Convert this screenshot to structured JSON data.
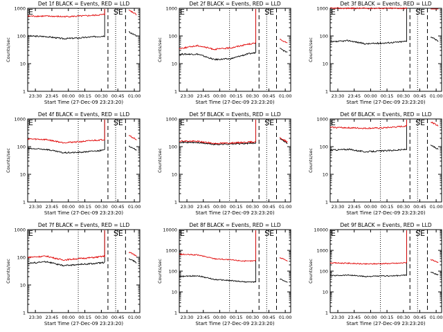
{
  "colors": {
    "events": "#000000",
    "lld": "#e00000",
    "background": "#ffffff",
    "axis": "#000000"
  },
  "chart_data": [
    {
      "type": "line",
      "title": "Det 1f BLACK = Events, RED = LLD",
      "xlabel": "Start Time (27-Dec-09 23:23:20)",
      "ylabel": "Counts/sec",
      "y_scale": "log",
      "ylim": [
        1,
        1000
      ],
      "xlim": [
        "23:23",
        "01:05"
      ],
      "x_tick_labels": [
        "23:30",
        "23:45",
        "00:00",
        "00:15",
        "00:30",
        "00:45",
        "01:00"
      ],
      "y_tick_labels": [
        "1",
        "10",
        "100",
        "1000"
      ],
      "marker_labels": [
        "E",
        "SE"
      ],
      "series": [
        {
          "name": "BLACK = Events",
          "data": [
            [
              "23:23",
              100
            ],
            [
              "23:40",
              95
            ],
            [
              "23:55",
              80
            ],
            [
              "00:10",
              85
            ],
            [
              "00:25",
              95
            ],
            [
              "00:33",
              100
            ]
          ]
        },
        {
          "name": "RED = LLD",
          "data": [
            [
              "23:23",
              520
            ],
            [
              "23:40",
              520
            ],
            [
              "23:55",
              500
            ],
            [
              "00:10",
              520
            ],
            [
              "00:25",
              560
            ],
            [
              "00:33",
              600
            ]
          ]
        }
      ]
    },
    {
      "type": "line",
      "title": "Det 2f BLACK = Events, RED = LLD",
      "xlabel": "Start Time (27-Dec-09 23:23:20)",
      "ylabel": "Counts/sec",
      "y_scale": "log",
      "ylim": [
        1,
        1000
      ],
      "xlim": [
        "23:23",
        "01:05"
      ],
      "x_tick_labels": [
        "23:30",
        "23:45",
        "00:00",
        "00:15",
        "00:30",
        "00:45",
        "01:00"
      ],
      "y_tick_labels": [
        "1",
        "10",
        "100",
        "1000"
      ],
      "marker_labels": [
        "E",
        "SE"
      ],
      "series": [
        {
          "name": "BLACK = Events",
          "data": [
            [
              "23:23",
              22
            ],
            [
              "23:40",
              22
            ],
            [
              "23:55",
              14
            ],
            [
              "00:10",
              15
            ],
            [
              "00:25",
              22
            ],
            [
              "00:33",
              25
            ]
          ]
        },
        {
          "name": "RED = LLD",
          "data": [
            [
              "23:23",
              35
            ],
            [
              "23:40",
              45
            ],
            [
              "23:55",
              33
            ],
            [
              "00:10",
              37
            ],
            [
              "00:25",
              50
            ],
            [
              "00:33",
              55
            ]
          ]
        }
      ]
    },
    {
      "type": "line",
      "title": "Det 3f BLACK = Events, RED = LLD",
      "xlabel": "Start Time (27-Dec-09 23:23:20)",
      "ylabel": "Counts/sec",
      "y_scale": "log",
      "ylim": [
        1,
        1000
      ],
      "xlim": [
        "23:23",
        "01:05"
      ],
      "x_tick_labels": [
        "23:30",
        "23:45",
        "00:00",
        "00:15",
        "00:30",
        "00:45",
        "01:00"
      ],
      "y_tick_labels": [
        "1",
        "10",
        "100",
        "1000"
      ],
      "marker_labels": [
        "E",
        "SE"
      ],
      "series": [
        {
          "name": "BLACK = Events",
          "data": [
            [
              "23:23",
              60
            ],
            [
              "23:40",
              68
            ],
            [
              "23:55",
              52
            ],
            [
              "00:10",
              55
            ],
            [
              "00:25",
              60
            ],
            [
              "00:33",
              65
            ]
          ]
        },
        {
          "name": "RED = LLD",
          "data": [
            [
              "23:23",
              1000
            ],
            [
              "23:40",
              1000
            ],
            [
              "23:55",
              1000
            ],
            [
              "00:10",
              1000
            ],
            [
              "00:25",
              1000
            ],
            [
              "00:33",
              1000
            ]
          ]
        }
      ]
    },
    {
      "type": "line",
      "title": "Det 4f BLACK = Events, RED = LLD",
      "xlabel": "Start Time (27-Dec-09 23:23:20)",
      "ylabel": "Counts/sec",
      "y_scale": "log",
      "ylim": [
        1,
        1000
      ],
      "xlim": [
        "23:23",
        "01:05"
      ],
      "x_tick_labels": [
        "23:30",
        "23:45",
        "00:00",
        "00:15",
        "00:30",
        "00:45",
        "01:00"
      ],
      "y_tick_labels": [
        "1",
        "10",
        "100",
        "1000"
      ],
      "marker_labels": [
        "E",
        "SE"
      ],
      "series": [
        {
          "name": "BLACK = Events",
          "data": [
            [
              "23:23",
              85
            ],
            [
              "23:40",
              80
            ],
            [
              "23:55",
              60
            ],
            [
              "00:10",
              62
            ],
            [
              "00:25",
              70
            ],
            [
              "00:33",
              75
            ]
          ]
        },
        {
          "name": "RED = LLD",
          "data": [
            [
              "23:23",
              190
            ],
            [
              "23:40",
              180
            ],
            [
              "23:55",
              140
            ],
            [
              "00:10",
              150
            ],
            [
              "00:25",
              170
            ],
            [
              "00:33",
              180
            ]
          ]
        }
      ]
    },
    {
      "type": "line",
      "title": "Det 5f BLACK = Events, RED = LLD",
      "xlabel": "Start Time (27-Dec-09 23:23:20)",
      "ylabel": "Counts/sec",
      "y_scale": "log",
      "ylim": [
        1,
        1000
      ],
      "xlim": [
        "23:23",
        "01:05"
      ],
      "x_tick_labels": [
        "23:30",
        "23:45",
        "00:00",
        "00:15",
        "00:30",
        "00:45",
        "01:00"
      ],
      "y_tick_labels": [
        "1",
        "10",
        "100",
        "1000"
      ],
      "marker_labels": [
        "E",
        "SE"
      ],
      "series": [
        {
          "name": "BLACK = Events",
          "data": [
            [
              "23:23",
              145
            ],
            [
              "23:40",
              140
            ],
            [
              "23:55",
              120
            ],
            [
              "00:10",
              125
            ],
            [
              "00:25",
              130
            ],
            [
              "00:33",
              135
            ]
          ]
        },
        {
          "name": "RED = LLD",
          "data": [
            [
              "23:23",
              160
            ],
            [
              "23:40",
              155
            ],
            [
              "23:55",
              130
            ],
            [
              "00:10",
              135
            ],
            [
              "00:25",
              145
            ],
            [
              "00:33",
              150
            ]
          ]
        }
      ]
    },
    {
      "type": "line",
      "title": "Det 6f BLACK = Events, RED = LLD",
      "xlabel": "Start Time (27-Dec-09 23:23:20)",
      "ylabel": "Counts/sec",
      "y_scale": "log",
      "ylim": [
        1,
        1000
      ],
      "xlim": [
        "23:23",
        "01:05"
      ],
      "x_tick_labels": [
        "23:30",
        "23:45",
        "00:00",
        "00:15",
        "00:30",
        "00:45",
        "01:00"
      ],
      "y_tick_labels": [
        "1",
        "10",
        "100",
        "1000"
      ],
      "marker_labels": [
        "E",
        "SE"
      ],
      "series": [
        {
          "name": "BLACK = Events",
          "data": [
            [
              "23:23",
              75
            ],
            [
              "23:40",
              80
            ],
            [
              "23:55",
              65
            ],
            [
              "00:10",
              70
            ],
            [
              "00:25",
              75
            ],
            [
              "00:33",
              80
            ]
          ]
        },
        {
          "name": "RED = LLD",
          "data": [
            [
              "23:23",
              500
            ],
            [
              "23:40",
              480
            ],
            [
              "23:55",
              460
            ],
            [
              "00:10",
              470
            ],
            [
              "00:25",
              520
            ],
            [
              "00:33",
              560
            ]
          ]
        }
      ]
    },
    {
      "type": "line",
      "title": "Det 7f BLACK = Events, RED = LLD",
      "xlabel": "Start Time (27-Dec-09 23:23:20)",
      "ylabel": "Counts/sec",
      "y_scale": "log",
      "ylim": [
        1,
        1000
      ],
      "xlim": [
        "23:23",
        "01:05"
      ],
      "x_tick_labels": [
        "23:30",
        "23:45",
        "00:00",
        "00:15",
        "00:30",
        "00:45",
        "01:00"
      ],
      "y_tick_labels": [
        "1",
        "10",
        "100",
        "1000"
      ],
      "marker_labels": [
        "E",
        "SE"
      ],
      "series": [
        {
          "name": "BLACK = Events",
          "data": [
            [
              "23:23",
              60
            ],
            [
              "23:40",
              70
            ],
            [
              "23:55",
              50
            ],
            [
              "00:10",
              55
            ],
            [
              "00:25",
              60
            ],
            [
              "00:33",
              65
            ]
          ]
        },
        {
          "name": "RED = LLD",
          "data": [
            [
              "23:23",
              100
            ],
            [
              "23:40",
              110
            ],
            [
              "23:55",
              80
            ],
            [
              "00:10",
              90
            ],
            [
              "00:25",
              100
            ],
            [
              "00:33",
              110
            ]
          ]
        }
      ]
    },
    {
      "type": "line",
      "title": "Det 8f BLACK = Events, RED = LLD",
      "xlabel": "Start Time (27-Dec-09 23:23:20)",
      "ylabel": "Counts/sec",
      "y_scale": "log",
      "ylim": [
        1,
        10000
      ],
      "xlim": [
        "23:23",
        "01:05"
      ],
      "x_tick_labels": [
        "23:30",
        "23:45",
        "00:00",
        "00:15",
        "00:30",
        "00:45",
        "01:00"
      ],
      "y_tick_labels": [
        "1",
        "10",
        "100",
        "1000",
        "10000"
      ],
      "marker_labels": [
        "E",
        "SE"
      ],
      "series": [
        {
          "name": "BLACK = Events",
          "data": [
            [
              "23:23",
              55
            ],
            [
              "23:40",
              60
            ],
            [
              "23:55",
              40
            ],
            [
              "00:10",
              35
            ],
            [
              "00:25",
              30
            ],
            [
              "00:33",
              30
            ]
          ]
        },
        {
          "name": "RED = LLD",
          "data": [
            [
              "23:23",
              650
            ],
            [
              "23:40",
              600
            ],
            [
              "23:55",
              400
            ],
            [
              "00:10",
              350
            ],
            [
              "00:25",
              300
            ],
            [
              "00:33",
              320
            ]
          ]
        }
      ]
    },
    {
      "type": "line",
      "title": "Det 9f BLACK = Events, RED = LLD",
      "xlabel": "Start Time (27-Dec-09 23:23:20)",
      "ylabel": "Counts/sec",
      "y_scale": "log",
      "ylim": [
        1,
        10000
      ],
      "xlim": [
        "23:23",
        "01:05"
      ],
      "x_tick_labels": [
        "23:30",
        "23:45",
        "00:00",
        "00:15",
        "00:30",
        "00:45",
        "01:00"
      ],
      "y_tick_labels": [
        "1",
        "10",
        "100",
        "1000",
        "10000"
      ],
      "marker_labels": [
        "E",
        "SE"
      ],
      "series": [
        {
          "name": "BLACK = Events",
          "data": [
            [
              "23:23",
              60
            ],
            [
              "23:40",
              65
            ],
            [
              "23:55",
              55
            ],
            [
              "00:10",
              58
            ],
            [
              "00:25",
              60
            ],
            [
              "00:33",
              65
            ]
          ]
        },
        {
          "name": "RED = LLD",
          "data": [
            [
              "23:23",
              250
            ],
            [
              "23:40",
              240
            ],
            [
              "23:55",
              220
            ],
            [
              "00:10",
              230
            ],
            [
              "00:25",
              240
            ],
            [
              "00:33",
              260
            ]
          ]
        }
      ]
    }
  ]
}
